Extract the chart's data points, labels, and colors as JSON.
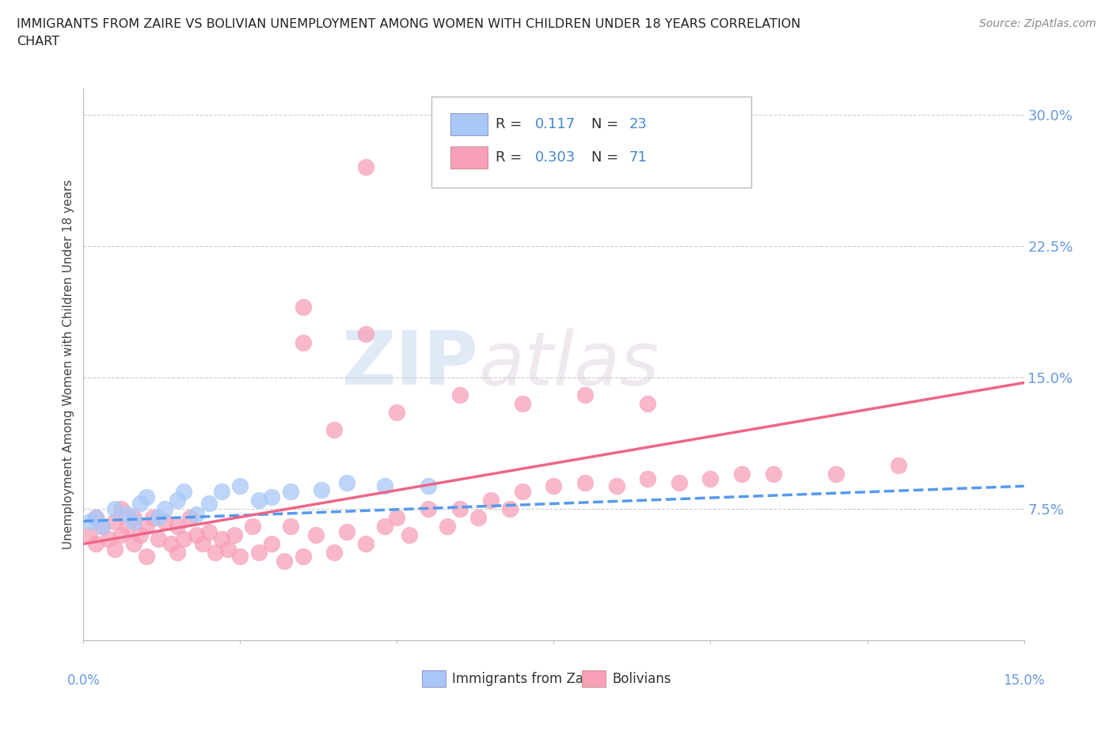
{
  "title_line1": "IMMIGRANTS FROM ZAIRE VS BOLIVIAN UNEMPLOYMENT AMONG WOMEN WITH CHILDREN UNDER 18 YEARS CORRELATION",
  "title_line2": "CHART",
  "source_text": "Source: ZipAtlas.com",
  "ylabel": "Unemployment Among Women with Children Under 18 years",
  "xlim": [
    0.0,
    0.15
  ],
  "ylim": [
    0.0,
    0.315
  ],
  "watermark_zip": "ZIP",
  "watermark_atlas": "atlas",
  "legend_r1_text": "R =",
  "legend_r1_val": "0.117",
  "legend_n1_text": "N =",
  "legend_n1_val": "23",
  "legend_r2_text": "R =",
  "legend_r2_val": "0.303",
  "legend_n2_text": "N =",
  "legend_n2_val": "71",
  "zaire_color": "#a8c8f8",
  "bolivian_color": "#f8a0b8",
  "zaire_line_color": "#5599ee",
  "bolivian_line_color": "#ee6688",
  "background_color": "#ffffff",
  "grid_color": "#cccccc",
  "ytick_color": "#6699dd",
  "xtick_color": "#6699dd",
  "zaire_x": [
    0.001,
    0.002,
    0.003,
    0.005,
    0.007,
    0.008,
    0.009,
    0.01,
    0.012,
    0.013,
    0.015,
    0.016,
    0.018,
    0.02,
    0.022,
    0.025,
    0.028,
    0.03,
    0.033,
    0.038,
    0.042,
    0.048,
    0.055
  ],
  "zaire_y": [
    0.068,
    0.07,
    0.065,
    0.075,
    0.072,
    0.068,
    0.078,
    0.082,
    0.07,
    0.075,
    0.08,
    0.085,
    0.072,
    0.078,
    0.085,
    0.088,
    0.08,
    0.082,
    0.085,
    0.086,
    0.09,
    0.088,
    0.088
  ],
  "bolivian_x": [
    0.001,
    0.002,
    0.002,
    0.003,
    0.004,
    0.005,
    0.005,
    0.006,
    0.006,
    0.007,
    0.008,
    0.008,
    0.009,
    0.01,
    0.01,
    0.011,
    0.012,
    0.013,
    0.014,
    0.015,
    0.015,
    0.016,
    0.017,
    0.018,
    0.019,
    0.02,
    0.021,
    0.022,
    0.023,
    0.024,
    0.025,
    0.027,
    0.028,
    0.03,
    0.032,
    0.033,
    0.035,
    0.037,
    0.04,
    0.042,
    0.045,
    0.048,
    0.05,
    0.052,
    0.055,
    0.058,
    0.06,
    0.063,
    0.065,
    0.068,
    0.07,
    0.075,
    0.08,
    0.085,
    0.09,
    0.095,
    0.1,
    0.105,
    0.11,
    0.12,
    0.13,
    0.04,
    0.05,
    0.06,
    0.07,
    0.08,
    0.09,
    0.035,
    0.045,
    0.035,
    0.045
  ],
  "bolivian_y": [
    0.06,
    0.055,
    0.07,
    0.065,
    0.058,
    0.052,
    0.068,
    0.06,
    0.075,
    0.065,
    0.055,
    0.07,
    0.06,
    0.048,
    0.065,
    0.07,
    0.058,
    0.068,
    0.055,
    0.05,
    0.065,
    0.058,
    0.07,
    0.06,
    0.055,
    0.062,
    0.05,
    0.058,
    0.052,
    0.06,
    0.048,
    0.065,
    0.05,
    0.055,
    0.045,
    0.065,
    0.048,
    0.06,
    0.05,
    0.062,
    0.055,
    0.065,
    0.07,
    0.06,
    0.075,
    0.065,
    0.075,
    0.07,
    0.08,
    0.075,
    0.085,
    0.088,
    0.09,
    0.088,
    0.092,
    0.09,
    0.092,
    0.095,
    0.095,
    0.095,
    0.1,
    0.12,
    0.13,
    0.14,
    0.135,
    0.14,
    0.135,
    0.17,
    0.175,
    0.19,
    0.27
  ],
  "zaire_line_x0": 0.0,
  "zaire_line_x1": 0.15,
  "zaire_line_y0": 0.068,
  "zaire_line_y1": 0.088,
  "bolivian_line_x0": 0.0,
  "bolivian_line_x1": 0.15,
  "bolivian_line_y0": 0.055,
  "bolivian_line_y1": 0.147
}
